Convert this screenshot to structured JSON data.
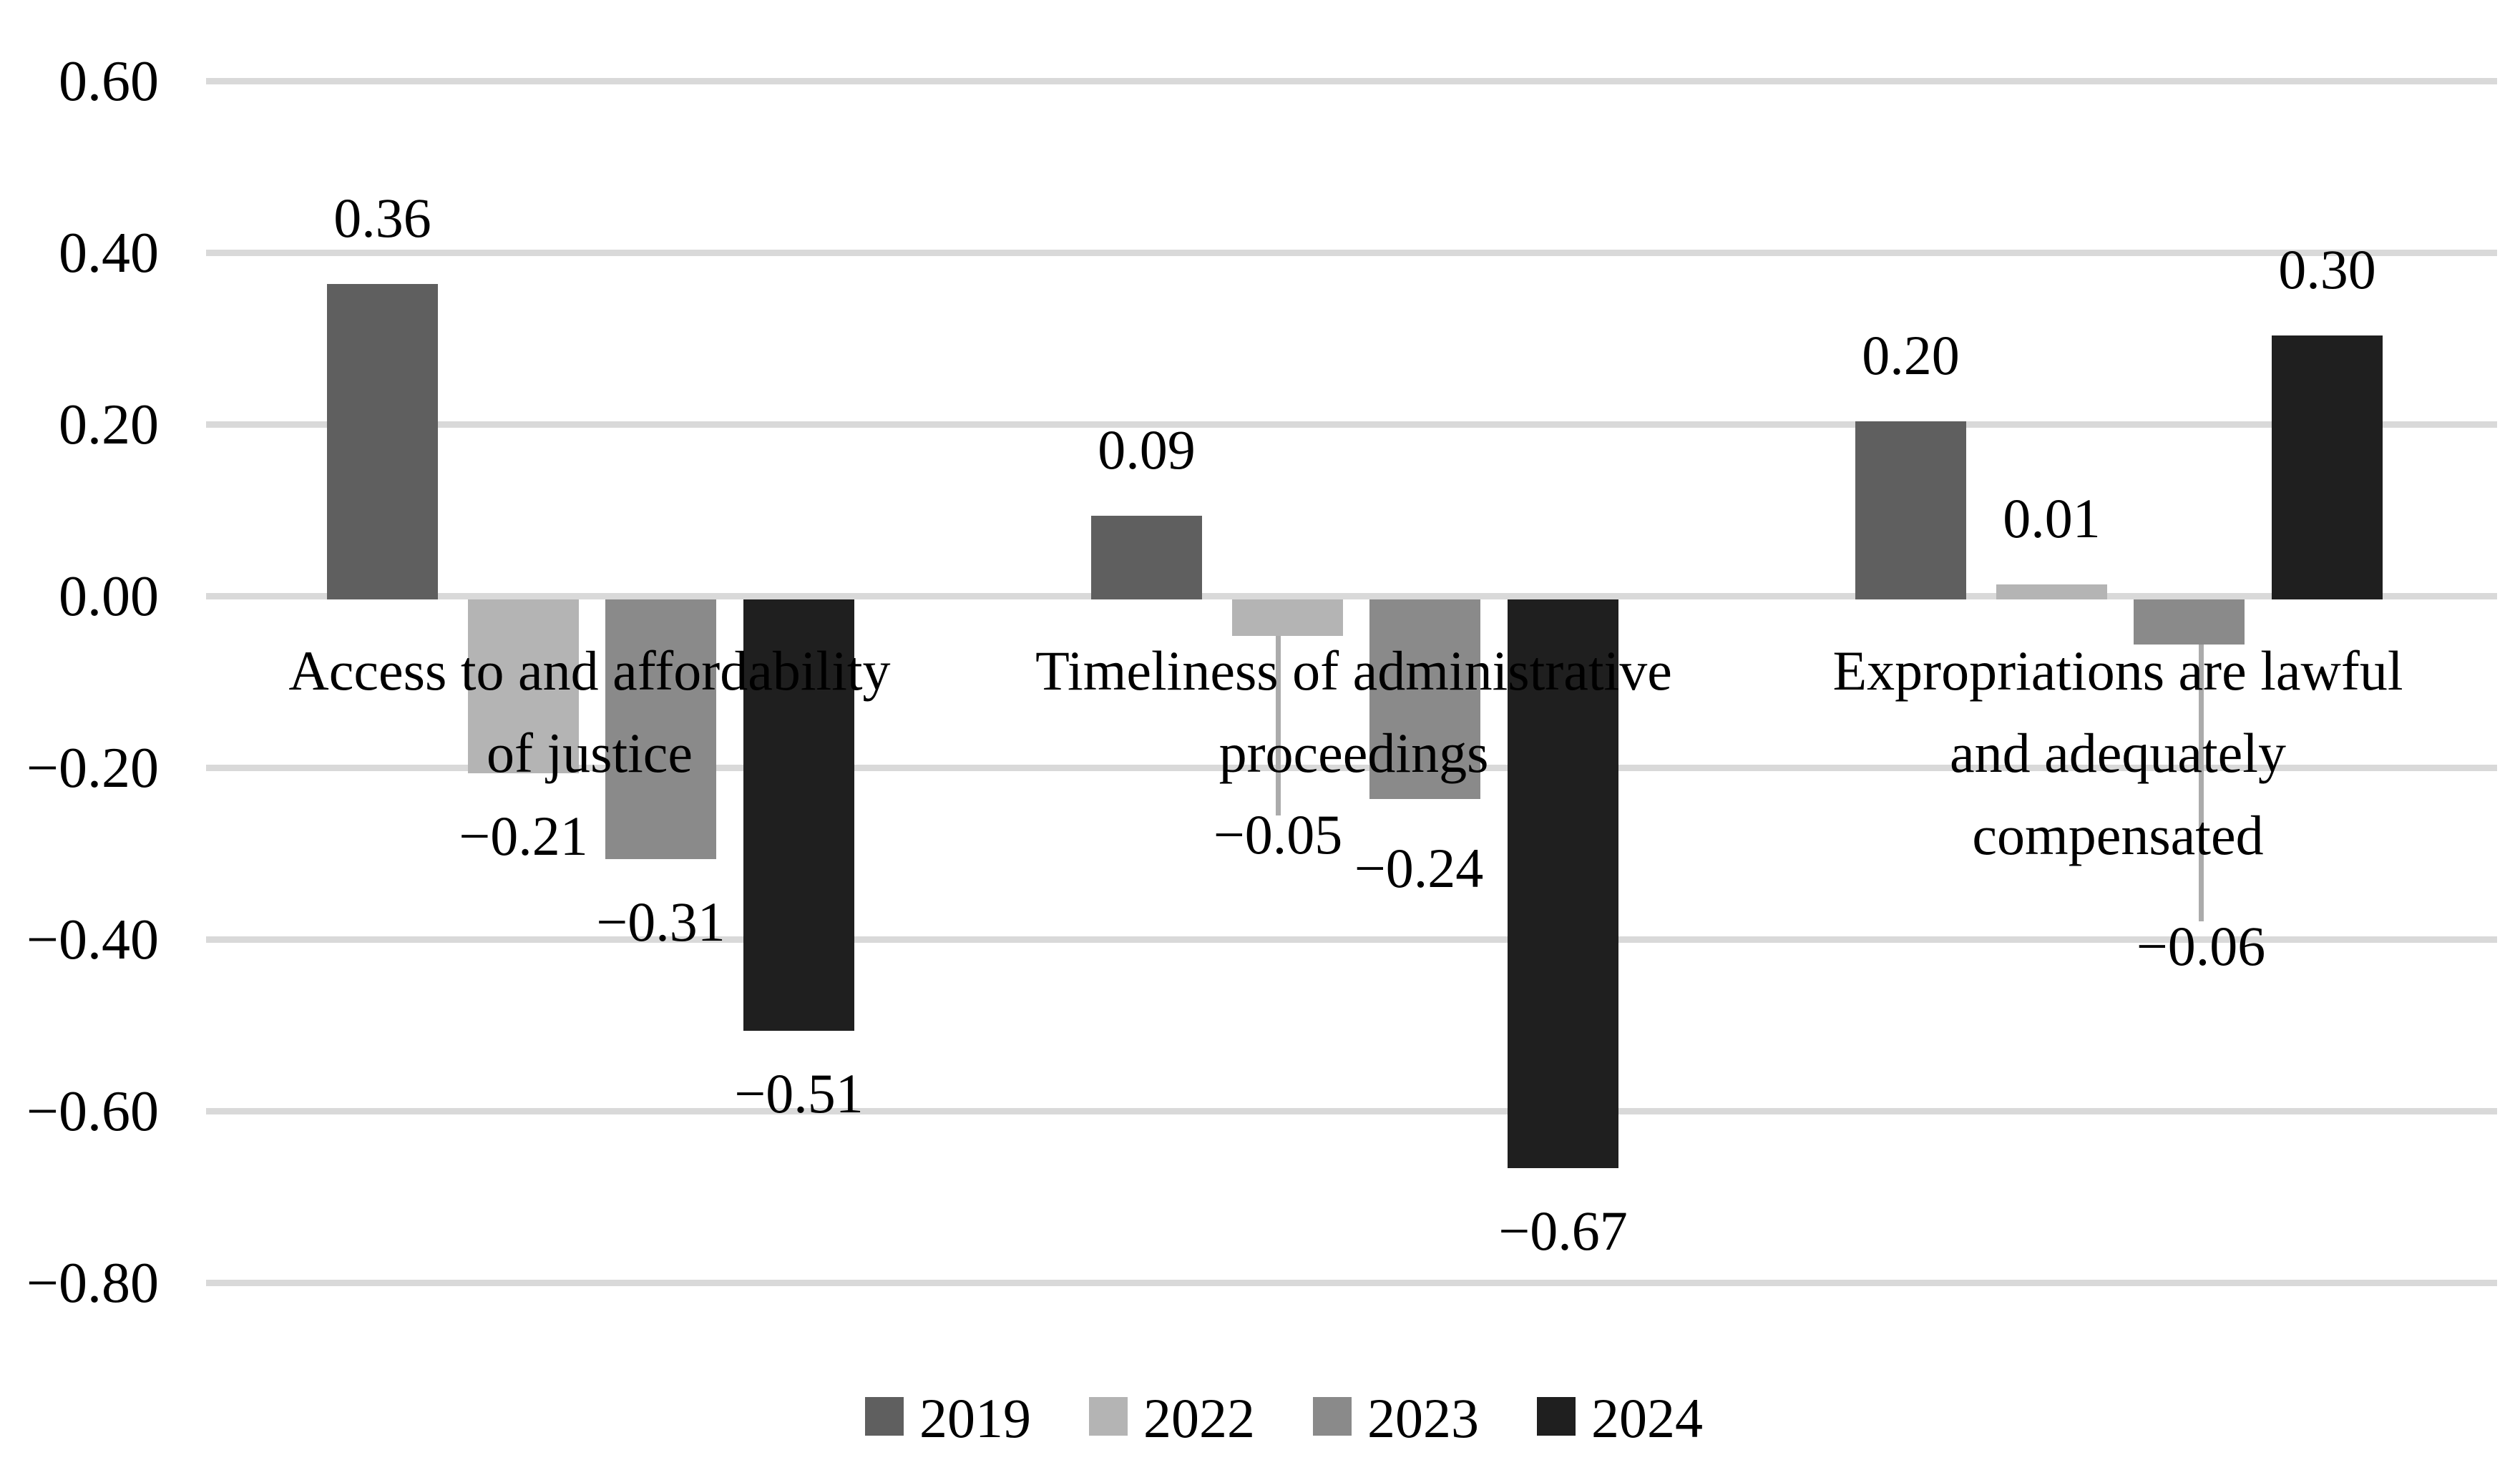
{
  "chart_data": {
    "type": "bar",
    "title": "",
    "xlabel": "",
    "ylabel": "",
    "ylim": [
      -0.8,
      0.6
    ],
    "grid": true,
    "gridline_color": "#D9D9D9",
    "background_color": "#FFFFFF",
    "text_color": "#000000",
    "legend_position": "bottom",
    "categories": [
      {
        "id": "access-justice",
        "label": "Access to and affordability of justice",
        "label_lines": [
          "Access to and affordability",
          "of justice"
        ]
      },
      {
        "id": "timeliness-admin",
        "label": "Timeliness of administrative proceedings",
        "label_lines": [
          "Timeliness of administrative",
          "proceedings"
        ]
      },
      {
        "id": "expropriations",
        "label": "Expropriations are lawful and adequately compensated",
        "label_lines": [
          "Expropriations are lawful",
          "and adequately",
          "compensated"
        ]
      }
    ],
    "series": [
      {
        "name": "2019",
        "color": "#5F5F5F",
        "values": [
          0.36,
          0.09,
          0.2
        ],
        "labels": [
          "0.36",
          "0.09",
          "0.20"
        ]
      },
      {
        "name": "2022",
        "color": "#B4B4B4",
        "values": [
          -0.21,
          -0.05,
          0.01
        ],
        "labels": [
          "−0.21",
          "−0.05",
          "0.01"
        ]
      },
      {
        "name": "2023",
        "color": "#8A8A8A",
        "values": [
          -0.31,
          -0.24,
          -0.06
        ],
        "labels": [
          "−0.31",
          "−0.24",
          "−0.06"
        ]
      },
      {
        "name": "2024",
        "color": "#1F1F1F",
        "values": [
          -0.51,
          -0.67,
          0.3
        ],
        "labels": [
          "−0.51",
          "−0.67",
          "0.30"
        ]
      }
    ],
    "y_axis": {
      "ticks": [
        {
          "v": 0.6,
          "label": "0.60"
        },
        {
          "v": 0.4,
          "label": "0.40"
        },
        {
          "v": 0.2,
          "label": "0.20"
        },
        {
          "v": 0.0,
          "label": "0.00"
        },
        {
          "v": -0.2,
          "label": "−0.20"
        },
        {
          "v": -0.4,
          "label": "−0.40"
        },
        {
          "v": -0.6,
          "label": "−0.60"
        },
        {
          "v": -0.8,
          "label": "−0.80"
        }
      ]
    },
    "legend": {
      "entries": [
        "2019",
        "2022",
        "2023",
        "2024"
      ]
    },
    "callouts": [
      {
        "series": "2022",
        "category": "timeliness-admin",
        "value_label": "−0.05",
        "leader_line_color": "#ABABAB"
      },
      {
        "series": "2023",
        "category": "expropriations",
        "value_label": "−0.06",
        "leader_line_color": "#ABABAB"
      }
    ]
  }
}
